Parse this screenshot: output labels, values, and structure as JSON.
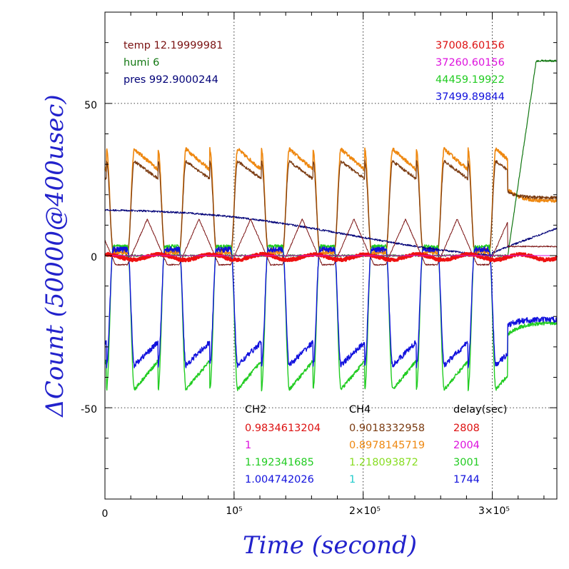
{
  "chart_data": {
    "type": "line",
    "xlabel": "Time (second)",
    "ylabel": "ΔCount (50000@400usec)",
    "xlim": [
      0,
      350000
    ],
    "ylim": [
      -80,
      80
    ],
    "x_ticks": [
      {
        "value": 0,
        "label": "0"
      },
      {
        "value": 100000,
        "label": "10⁵"
      },
      {
        "value": 200000,
        "label": "2×10⁵"
      },
      {
        "value": 300000,
        "label": "3×10⁵"
      }
    ],
    "y_ticks": [
      {
        "value": 50,
        "label": "50"
      },
      {
        "value": 0,
        "label": "0"
      },
      {
        "value": -50,
        "label": "-50"
      }
    ],
    "grid": "dotted",
    "env_lines": [
      "temp 12.19999981",
      "humi 6",
      "pres 992.9000244"
    ],
    "base_counts": [
      {
        "text": "37008.60156",
        "color": "#dd1111"
      },
      {
        "text": "37260.60156",
        "color": "#dd11dd"
      },
      {
        "text": "44459.19922",
        "color": "#22cc22"
      },
      {
        "text": "37499.89844",
        "color": "#1111dd"
      }
    ],
    "coef_table": {
      "headers": [
        "CH2",
        "CH4",
        "delay(sec)"
      ],
      "rows": [
        [
          "0.9834613204",
          "0.9018332958",
          "2808"
        ],
        [
          "1",
          "0.8978145719",
          "2004"
        ],
        [
          "1.192341685",
          "1.218093872",
          "3001"
        ],
        [
          "1.004742026",
          "1",
          "1744"
        ]
      ],
      "row_colors": [
        [
          "#dd1111",
          "#7a3a10",
          "#dd1111"
        ],
        [
          "#dd11dd",
          "#ee8811",
          "#dd11dd"
        ],
        [
          "#22cc22",
          "#88dd22",
          "#22cc22"
        ],
        [
          "#1111dd",
          "#22cccc",
          "#1111dd"
        ]
      ]
    },
    "period": 40000,
    "phase": 32000,
    "step_time": 312000,
    "series": [
      {
        "id": "orange",
        "color": "#ee8811",
        "width": 1.6,
        "peak": 35,
        "base": 1,
        "end": 18
      },
      {
        "id": "brown",
        "color": "#7a3a10",
        "width": 1.2,
        "peak": 31,
        "base": 2,
        "end": 19
      },
      {
        "id": "green",
        "color": "#22cc22",
        "width": 1.4,
        "peak": -44,
        "base": 3,
        "end": -22
      },
      {
        "id": "blue",
        "color": "#1111dd",
        "width": 1.4,
        "peak": -36,
        "base": 2,
        "end": -21
      },
      {
        "id": "darkgreen",
        "color": "#117711",
        "width": 1.2,
        "step_from": 0,
        "step_to": 64
      },
      {
        "id": "navy",
        "color": "#000077",
        "width": 1.0,
        "start": 15,
        "end": 9
      },
      {
        "id": "maroon",
        "color": "#7a1111",
        "width": 1.0,
        "amp": 12
      },
      {
        "id": "red",
        "color": "#ee1111",
        "width": 3.0,
        "amp": 1.5
      },
      {
        "id": "magenta",
        "color": "#dd11dd",
        "width": 1.0,
        "value": 0
      }
    ]
  }
}
